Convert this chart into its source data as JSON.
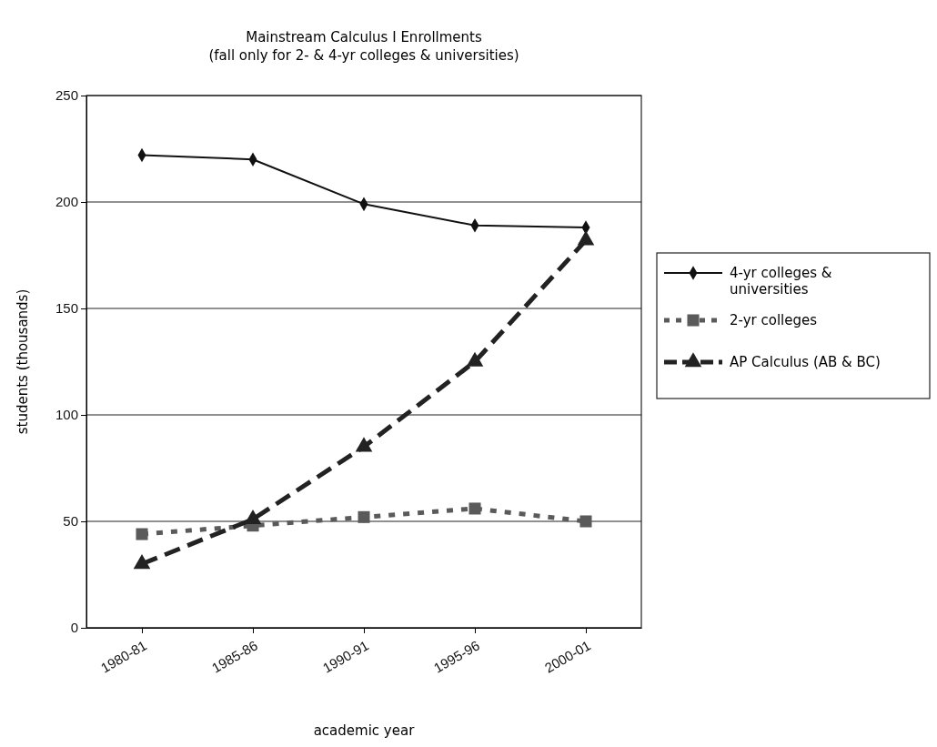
{
  "chart_data": {
    "type": "line",
    "title": "Mainstream Calculus I Enrollments",
    "subtitle": "(fall only for 2- & 4-yr colleges & universities)",
    "xlabel": "academic year",
    "ylabel": "students (thousands)",
    "categories": [
      "1980-81",
      "1985-86",
      "1990-91",
      "1995-96",
      "2000-01"
    ],
    "series": [
      {
        "name": "4-yr colleges & universities",
        "color": "#111111",
        "marker": "diamond",
        "line_style": "solid",
        "values": [
          222,
          220,
          199,
          189,
          188
        ]
      },
      {
        "name": "2-yr colleges",
        "color": "#5a5a5a",
        "marker": "square",
        "line_style": "dotted",
        "values": [
          44,
          48,
          52,
          56,
          50
        ]
      },
      {
        "name": "AP Calculus (AB & BC)",
        "color": "#222222",
        "marker": "triangle",
        "line_style": "dashed",
        "values": [
          30,
          51,
          85,
          125,
          182
        ]
      }
    ],
    "ylim": [
      0,
      250
    ],
    "yticks": [
      0,
      50,
      100,
      150,
      200,
      250
    ],
    "grid": "y",
    "legend": "right"
  }
}
